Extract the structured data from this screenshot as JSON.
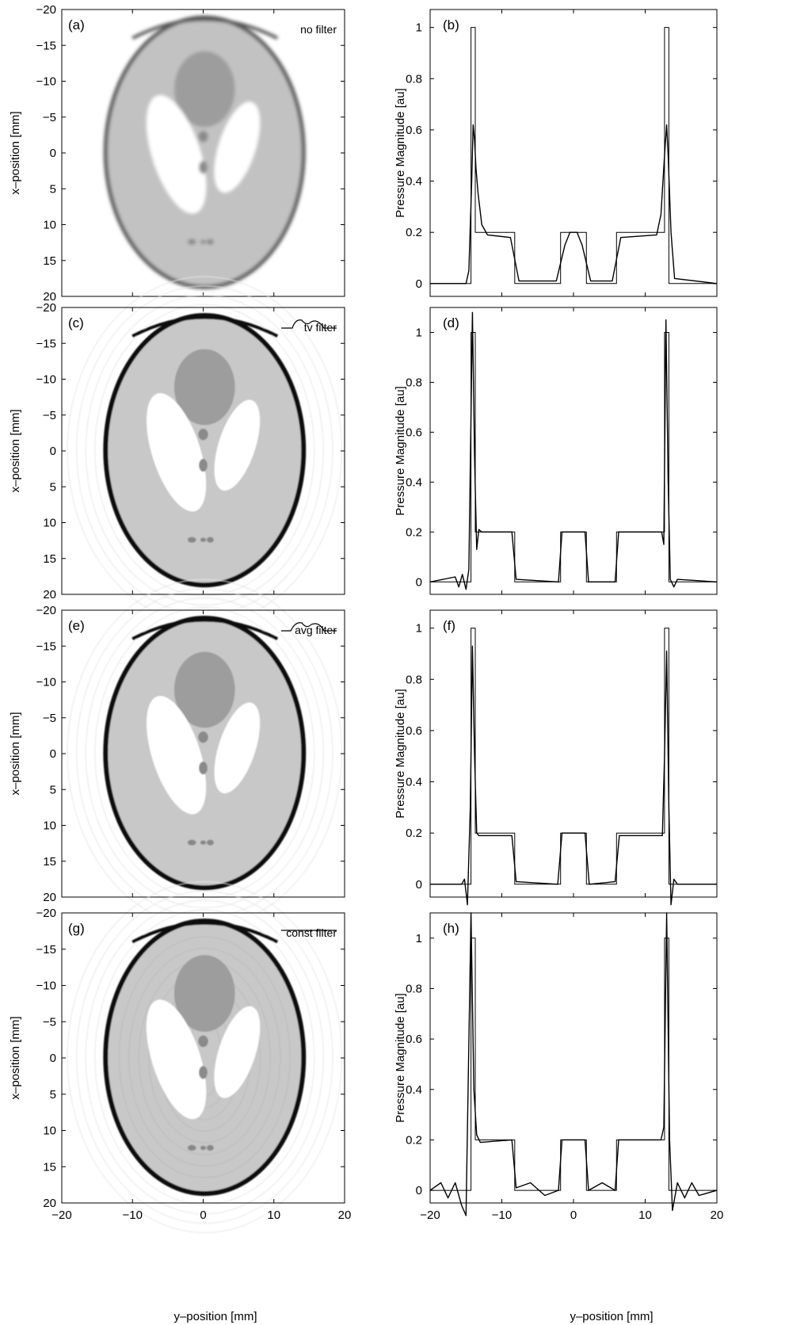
{
  "figure": {
    "x_axis_label": "y–position [mm]",
    "image_y_label": "x–position [mm]",
    "profile_y_label": "Pressure Magnitude [au]",
    "x_ticks": [
      -20,
      -10,
      0,
      10,
      20
    ],
    "image_y_ticks": [
      -20,
      -15,
      -10,
      -5,
      0,
      5,
      10,
      15,
      20
    ],
    "profile_y_ticks": [
      0,
      0.2,
      0.4,
      0.6,
      0.8,
      1
    ]
  },
  "chart_data": [
    {
      "type": "heatmap",
      "panel": "(a)",
      "filter_label": "no filter",
      "filter_icon": "none",
      "xlim": [
        -20,
        20
      ],
      "ylim": [
        -20,
        20
      ],
      "xlabel": "",
      "ylabel": "x–position [mm]",
      "edge_sharpness": "blurred",
      "ripple": "none"
    },
    {
      "type": "line",
      "panel": "(b)",
      "xlim": [
        -20,
        20
      ],
      "ylim": [
        -0.05,
        1.07
      ],
      "xlabel": "",
      "ylabel": "Pressure Magnitude [au]",
      "series": [
        {
          "role": "true",
          "x": [
            -20,
            -14.3,
            -14.3,
            -13.7,
            -13.7,
            -8.2,
            -8.2,
            -1.8,
            -1.8,
            1.8,
            1.8,
            6,
            6,
            12.7,
            12.7,
            13.3,
            13.3,
            20
          ],
          "y": [
            0,
            0,
            1,
            1,
            0.2,
            0.2,
            0,
            0,
            0.2,
            0.2,
            0,
            0,
            0.2,
            0.2,
            1,
            1,
            0,
            0
          ]
        },
        {
          "role": "reconstructed",
          "x": [
            -20,
            -15,
            -14.6,
            -14.2,
            -14,
            -13.8,
            -13.6,
            -13.3,
            -12.8,
            -12,
            -8.8,
            -7.6,
            -2.4,
            -1.2,
            -0.5,
            0.5,
            1.2,
            2.4,
            5.4,
            6.6,
            11.6,
            12.2,
            12.7,
            13,
            13.2,
            13.6,
            14.1,
            20
          ],
          "y": [
            0,
            0,
            0.05,
            0.4,
            0.62,
            0.56,
            0.45,
            0.35,
            0.23,
            0.19,
            0.18,
            0.01,
            0.01,
            0.15,
            0.2,
            0.2,
            0.15,
            0.01,
            0.01,
            0.18,
            0.19,
            0.27,
            0.5,
            0.62,
            0.5,
            0.2,
            0.02,
            0
          ]
        }
      ]
    },
    {
      "type": "heatmap",
      "panel": "(c)",
      "filter_label": "tv filter",
      "filter_icon": "tv-curve",
      "xlim": [
        -20,
        20
      ],
      "ylim": [
        -20,
        20
      ],
      "xlabel": "",
      "ylabel": "x–position [mm]",
      "edge_sharpness": "sharp",
      "ripple": "faint outer rings"
    },
    {
      "type": "line",
      "panel": "(d)",
      "xlim": [
        -20,
        20
      ],
      "ylim": [
        -0.05,
        1.1
      ],
      "xlabel": "",
      "ylabel": "Pressure Magnitude [au]",
      "series": [
        {
          "role": "true",
          "x": [
            -20,
            -14.3,
            -14.3,
            -13.7,
            -13.7,
            -8.2,
            -8.2,
            -1.8,
            -1.8,
            1.8,
            1.8,
            6,
            6,
            12.7,
            12.7,
            13.3,
            13.3,
            20
          ],
          "y": [
            0,
            0,
            1,
            1,
            0.2,
            0.2,
            0,
            0,
            0.2,
            0.2,
            0,
            0,
            0.2,
            0.2,
            1,
            1,
            0,
            0
          ]
        },
        {
          "role": "reconstructed",
          "x": [
            -20,
            -16.5,
            -16,
            -15.5,
            -15,
            -14.6,
            -14.1,
            -13.8,
            -13.5,
            -13.2,
            -12.8,
            -8.6,
            -8,
            -2.1,
            -1.6,
            1.6,
            2.1,
            5.8,
            6.3,
            12.3,
            12.6,
            12.9,
            13.2,
            13.5,
            14,
            14.5,
            20
          ],
          "y": [
            0,
            0.02,
            -0.02,
            0.03,
            -0.03,
            0.05,
            1.08,
            0.5,
            0.13,
            0.21,
            0.2,
            0.2,
            0.01,
            0,
            0.2,
            0.2,
            0,
            0,
            0.2,
            0.2,
            0.15,
            1.05,
            0.4,
            0.01,
            -0.02,
            0.01,
            0
          ]
        }
      ]
    },
    {
      "type": "heatmap",
      "panel": "(e)",
      "filter_label": "avg filter",
      "filter_icon": "avg-curve",
      "xlim": [
        -20,
        20
      ],
      "ylim": [
        -20,
        20
      ],
      "xlabel": "",
      "ylabel": "x–position [mm]",
      "edge_sharpness": "sharp",
      "ripple": "faint rings"
    },
    {
      "type": "line",
      "panel": "(f)",
      "xlim": [
        -20,
        20
      ],
      "ylim": [
        -0.05,
        1.07
      ],
      "xlabel": "",
      "ylabel": "Pressure Magnitude [au]",
      "series": [
        {
          "role": "true",
          "x": [
            -20,
            -14.3,
            -14.3,
            -13.7,
            -13.7,
            -8.2,
            -8.2,
            -1.8,
            -1.8,
            1.8,
            1.8,
            6,
            6,
            12.7,
            12.7,
            13.3,
            13.3,
            20
          ],
          "y": [
            0,
            0,
            1,
            1,
            0.2,
            0.2,
            0,
            0,
            0.2,
            0.2,
            0,
            0,
            0.2,
            0.2,
            1,
            1,
            0,
            0
          ]
        },
        {
          "role": "reconstructed",
          "x": [
            -20,
            -15.6,
            -15.2,
            -14.8,
            -14.4,
            -14.1,
            -13.8,
            -13.5,
            -13.2,
            -8.6,
            -8,
            -2.2,
            -1.6,
            1.6,
            2.2,
            5.8,
            6.4,
            12.4,
            12.7,
            13,
            13.3,
            13.6,
            14,
            14.5,
            20
          ],
          "y": [
            0,
            0,
            0.02,
            -0.08,
            0.3,
            0.93,
            0.5,
            0.2,
            0.19,
            0.19,
            0.01,
            0,
            0.2,
            0.2,
            0,
            0.01,
            0.19,
            0.19,
            0.5,
            0.91,
            0.3,
            -0.08,
            0.02,
            0,
            0
          ]
        }
      ]
    },
    {
      "type": "heatmap",
      "panel": "(g)",
      "filter_label": "const filter",
      "filter_icon": "const-line",
      "xlim": [
        -20,
        20
      ],
      "ylim": [
        -20,
        20
      ],
      "xlabel": "y–position [mm]",
      "ylabel": "x–position [mm]",
      "edge_sharpness": "sharp",
      "ripple": "strong internal ripple"
    },
    {
      "type": "line",
      "panel": "(h)",
      "xlim": [
        -20,
        20
      ],
      "ylim": [
        -0.05,
        1.1
      ],
      "xlabel": "y–position [mm]",
      "ylabel": "Pressure Magnitude [au]",
      "series": [
        {
          "role": "true",
          "x": [
            -20,
            -14.3,
            -14.3,
            -13.7,
            -13.7,
            -8.2,
            -8.2,
            -1.8,
            -1.8,
            1.8,
            1.8,
            6,
            6,
            12.7,
            12.7,
            13.3,
            13.3,
            20
          ],
          "y": [
            0,
            0,
            1,
            1,
            0.2,
            0.2,
            0,
            0,
            0.2,
            0.2,
            0,
            0,
            0.2,
            0.2,
            1,
            1,
            0,
            0
          ]
        },
        {
          "role": "reconstructed",
          "x": [
            -20,
            -18.5,
            -17.5,
            -16.5,
            -15.6,
            -15,
            -14.3,
            -13.9,
            -13.5,
            -13,
            -8.6,
            -8,
            -6,
            -4,
            -2.1,
            -1.6,
            1.6,
            2.1,
            4,
            5.8,
            6.3,
            12.2,
            12.6,
            13,
            13.4,
            13.8,
            14.5,
            15.5,
            16.5,
            17.5,
            20
          ],
          "y": [
            0,
            0.03,
            -0.03,
            0.03,
            -0.06,
            -0.1,
            1.1,
            0.4,
            0.22,
            0.19,
            0.2,
            0.01,
            0.03,
            -0.02,
            0,
            0.2,
            0.2,
            0,
            0.03,
            0,
            0.2,
            0.2,
            0.25,
            1.1,
            0.2,
            -0.08,
            0.03,
            -0.03,
            0.03,
            -0.02,
            0
          ]
        }
      ]
    }
  ]
}
